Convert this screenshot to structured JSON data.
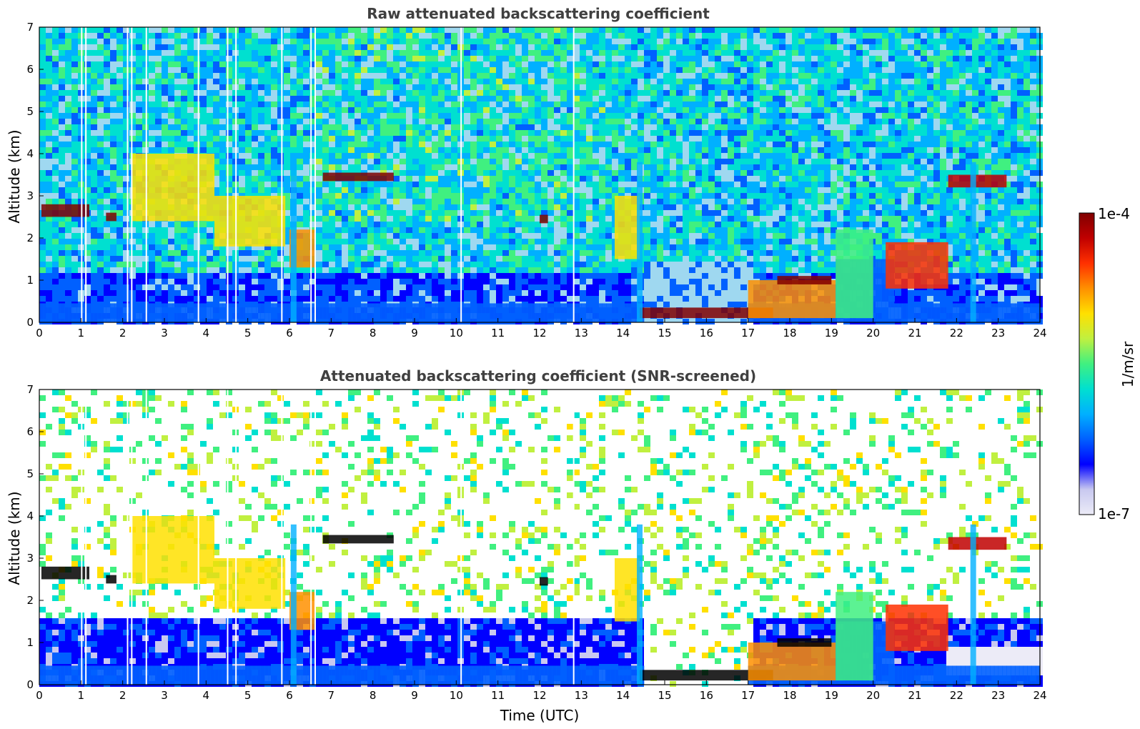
{
  "chart_data": [
    {
      "type": "heatmap",
      "title": "Raw attenuated backscattering coefficient",
      "xlabel": "",
      "ylabel": "Altitude (km)",
      "xlim": [
        0,
        24
      ],
      "ylim": [
        0,
        7
      ],
      "xticks": [
        "0",
        "1",
        "2",
        "3",
        "4",
        "5",
        "6",
        "7",
        "8",
        "9",
        "10",
        "11",
        "12",
        "13",
        "14",
        "15",
        "16",
        "17",
        "18",
        "19",
        "20",
        "21",
        "22",
        "23",
        "24"
      ],
      "yticks": [
        "0",
        "1",
        "2",
        "3",
        "4",
        "5",
        "6",
        "7"
      ],
      "features": {
        "boundary_layer_top_km": 0.5,
        "cloud_layers": [
          {
            "t_start": 0.0,
            "t_end": 0.7,
            "alt_km": 2.65
          },
          {
            "t_start": 1.6,
            "t_end": 1.8,
            "alt_km": 2.5
          },
          {
            "t_start": 6.8,
            "t_end": 8.5,
            "alt_km": 3.45
          },
          {
            "t_start": 12.0,
            "t_end": 12.2,
            "alt_km": 2.45
          },
          {
            "t_start": 14.4,
            "t_end": 17.6,
            "alt_km": 0.2
          },
          {
            "t_start": 17.6,
            "t_end": 19.0,
            "alt_km": 1.0
          }
        ],
        "precip_columns_utc": [
          6.1,
          14.4,
          22.4
        ]
      }
    },
    {
      "type": "heatmap",
      "title": "Attenuated backscattering coefficient (SNR-screened)",
      "xlabel": "Time (UTC)",
      "ylabel": "Altitude (km)",
      "xlim": [
        0,
        24
      ],
      "ylim": [
        0,
        7
      ],
      "xticks": [
        "0",
        "1",
        "2",
        "3",
        "4",
        "5",
        "6",
        "7",
        "8",
        "9",
        "10",
        "11",
        "12",
        "13",
        "14",
        "15",
        "16",
        "17",
        "18",
        "19",
        "20",
        "21",
        "22",
        "23",
        "24"
      ],
      "yticks": [
        "0",
        "1",
        "2",
        "3",
        "4",
        "5",
        "6",
        "7"
      ]
    }
  ],
  "colorbar": {
    "label": "1/m/sr",
    "min_label": "1e-7",
    "max_label": "1e-4",
    "scale": "log",
    "colors": [
      "#ecebf7",
      "#c8c8f0",
      "#0000ff",
      "#0060ff",
      "#00b0ff",
      "#00e0d0",
      "#40f080",
      "#c0f040",
      "#ffe000",
      "#ff9000",
      "#ff3000",
      "#c00000",
      "#800000"
    ]
  }
}
